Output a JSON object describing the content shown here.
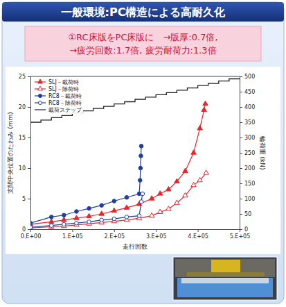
{
  "chart_data": {
    "type": "line",
    "title": "一般環境:PC構造による高耐久化",
    "subtitle": [
      "①RC床版をPC床版に　→版厚:0.7倍,",
      "→疲労回数:1.7倍, 疲労耐荷力:1.3倍"
    ],
    "xlabel": "走行回数",
    "ylabel": "支間中央位置のたわみ (mm)",
    "y2label": "輪荷重 (kN)",
    "xlim": [
      0,
      500000
    ],
    "xticks": [
      {
        "value": 0,
        "label": "0.E+00"
      },
      {
        "value": 100000,
        "label": "1.E+05"
      },
      {
        "value": 200000,
        "label": "2.E+05"
      },
      {
        "value": 300000,
        "label": "3.E+05"
      },
      {
        "value": 400000,
        "label": "4.E+05"
      },
      {
        "value": 500000,
        "label": "5.E+05"
      }
    ],
    "ylim": [
      0,
      25
    ],
    "yticks": [
      0,
      5,
      10,
      15,
      20,
      25
    ],
    "y2lim": [
      0,
      500
    ],
    "y2ticks": [
      0,
      50,
      100,
      150,
      200,
      250,
      300,
      350,
      400,
      450,
      500
    ],
    "grid": false,
    "legend": "upper left",
    "series": [
      {
        "name": "SLJ－載荷時",
        "color": "#e8262b",
        "marker": "triangle",
        "x": [
          0,
          50000,
          80000,
          110000,
          140000,
          170000,
          200000,
          230000,
          260000,
          290000,
          310000,
          330000,
          350000,
          370000,
          390000,
          405000,
          415000,
          418000
        ],
        "values": [
          0.8,
          1.2,
          1.5,
          1.8,
          2.1,
          2.5,
          3.0,
          3.5,
          4.1,
          5.0,
          5.8,
          6.5,
          7.8,
          9.5,
          12.5,
          16.5,
          19.5,
          20.5
        ]
      },
      {
        "name": "SLJ－除荷時",
        "color": "#e8262b",
        "marker": "triangle-open",
        "x": [
          0,
          50000,
          80000,
          110000,
          140000,
          170000,
          200000,
          230000,
          260000,
          290000,
          310000,
          330000,
          350000,
          370000,
          390000,
          405000,
          420000
        ],
        "values": [
          0.2,
          0.4,
          0.5,
          0.7,
          0.9,
          1.1,
          1.3,
          1.5,
          1.8,
          2.2,
          2.8,
          3.3,
          4.3,
          5.5,
          7.2,
          8.0,
          9.2
        ]
      },
      {
        "name": "RC8－載荷時",
        "color": "#1f3ea0",
        "marker": "circle",
        "x": [
          0,
          50000,
          80000,
          110000,
          140000,
          170000,
          200000,
          230000,
          260000,
          262000,
          263000,
          264000,
          265000
        ],
        "values": [
          1.0,
          2.0,
          2.3,
          2.9,
          3.4,
          3.9,
          4.6,
          5.2,
          5.8,
          8.0,
          10.0,
          12.0,
          13.6
        ]
      },
      {
        "name": "RC8－除荷時",
        "color": "#1f3ea0",
        "marker": "circle-open",
        "x": [
          0,
          50000,
          80000,
          110000,
          140000,
          170000,
          200000,
          230000,
          260000,
          265000,
          268000
        ],
        "values": [
          0.3,
          0.6,
          0.8,
          1.0,
          1.2,
          1.5,
          1.7,
          2.0,
          2.2,
          4.5,
          5.8
        ]
      },
      {
        "name": "載荷ステップ",
        "color": "#222222",
        "marker": "none",
        "type": "step",
        "axis": "y2",
        "x": [
          0,
          25000,
          50000,
          75000,
          100000,
          125000,
          150000,
          175000,
          200000,
          225000,
          250000,
          275000,
          300000,
          325000,
          350000,
          375000,
          400000,
          425000,
          450000,
          475000,
          500000
        ],
        "values": [
          350,
          357,
          365,
          372,
          380,
          387,
          395,
          402,
          410,
          417,
          425,
          432,
          440,
          447,
          455,
          462,
          470,
          477,
          485,
          492,
          492
        ]
      }
    ]
  }
}
